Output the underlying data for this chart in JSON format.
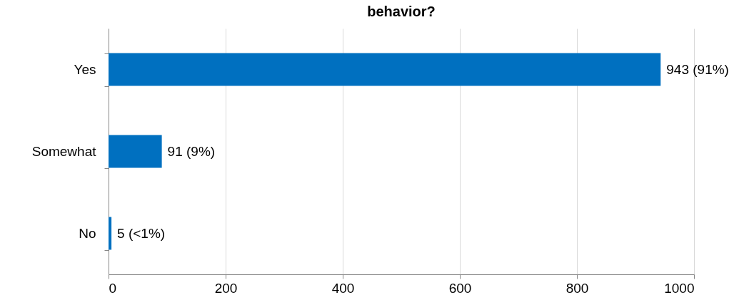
{
  "chart_data": {
    "type": "bar",
    "orientation": "horizontal",
    "title": "behavior?",
    "categories": [
      "Yes",
      "Somewhat",
      "No"
    ],
    "values": [
      943,
      91,
      5
    ],
    "value_labels": [
      "943 (91%)",
      "91 (9%)",
      "5 (<1%)"
    ],
    "color": "#0070c0",
    "xlim": [
      0,
      1000
    ],
    "xticks": [
      0,
      200,
      400,
      600,
      800,
      1000
    ],
    "grid": "x"
  }
}
